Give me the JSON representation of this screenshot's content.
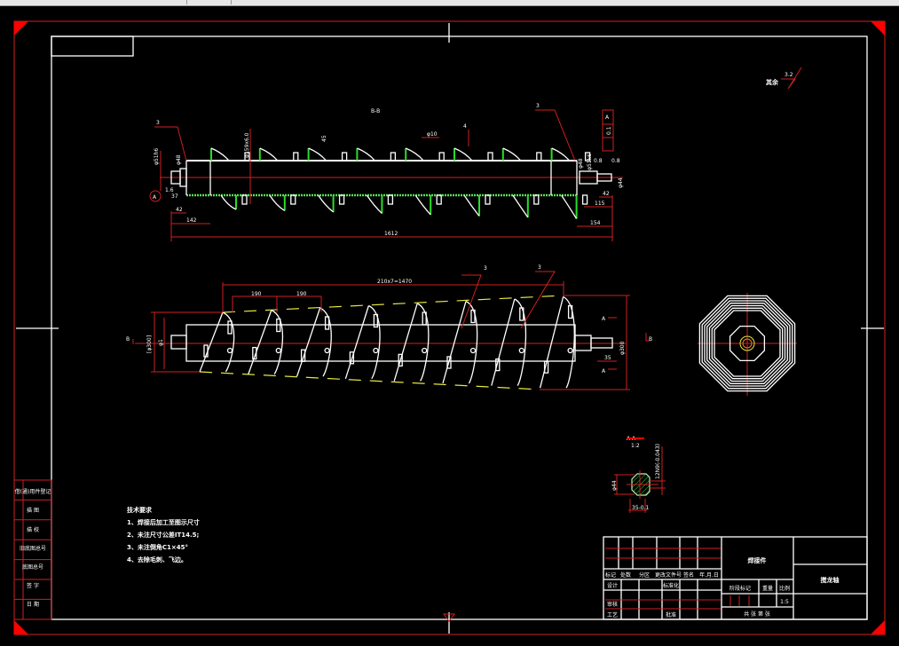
{
  "drawing": {
    "section_bb_label": "B-B",
    "section_aa_label": "A-A",
    "section_aa_scale": "1:2",
    "surface_roughness_other": {
      "label": "其余",
      "value": "3.2"
    },
    "weld_size": "3",
    "top_view_dims": [
      "φ51h6",
      "φ48",
      "φ159x6.0",
      "45",
      "φ10",
      "4",
      "37",
      "42",
      "142",
      "1612",
      "φ48",
      "φ51k6",
      "0.8",
      "0.8",
      "φ44",
      "42",
      "115",
      "154",
      "1.6"
    ],
    "tolerance_frame": [
      "A",
      "0.1"
    ],
    "front_view_dims": [
      "190",
      "190",
      "210x7=1470",
      "φ300",
      "φ1",
      "[φ300]",
      "35"
    ],
    "section_dims": [
      "φ44",
      "35-0.1",
      "12N9(-0.043)"
    ],
    "view_markers": [
      "A",
      "A",
      "B",
      "B"
    ]
  },
  "technical_requirements": {
    "title": "技术要求",
    "items": [
      "1、焊接后加工至图示尺寸",
      "2、未注尺寸公差IT14.5;",
      "3、未注倒角C1×45°",
      "4、去除毛刺、飞边。"
    ]
  },
  "side_table": {
    "rows": [
      "借(通)用件登记",
      "描 图",
      "描 校",
      "旧底图总号",
      "底图总号",
      "签 字",
      "日 期"
    ]
  },
  "title_block": {
    "headers": [
      "标记",
      "处数",
      "分区",
      "更改文件号",
      "签名",
      "年.月.日"
    ],
    "design": "设计",
    "standardization": "标准化",
    "review": "审核",
    "process": "工艺",
    "approve": "批准",
    "stage_mark": "阶段标记",
    "weight": "重量",
    "scale_label": "比例",
    "scale": "1:5",
    "sheets": "共  张  第  张",
    "part_name": "焊接件",
    "drawing_name": "搅龙轴"
  },
  "colors": {
    "background": "#000000",
    "outline": "#ffffff",
    "dimension": "#d02020",
    "weld": "#2bdc2b",
    "hidden": "#e6e640"
  }
}
